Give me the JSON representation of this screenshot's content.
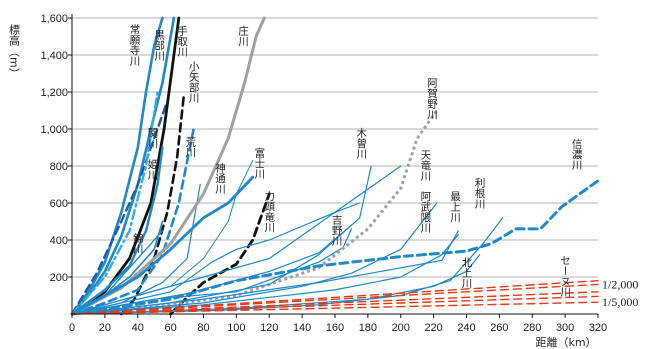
{
  "chart_data": {
    "type": "line",
    "title": "",
    "xlabel": "距離（km）",
    "ylabel": "標高（m）",
    "xlim": [
      0,
      320
    ],
    "ylim": [
      0,
      1600
    ],
    "x_ticks": [
      0,
      20,
      40,
      60,
      80,
      100,
      120,
      140,
      160,
      180,
      200,
      220,
      240,
      260,
      280,
      300,
      320
    ],
    "y_ticks": [
      {
        "value": 200,
        "label": "200"
      },
      {
        "value": 400,
        "label": "400"
      },
      {
        "value": 600,
        "label": "600"
      },
      {
        "value": 800,
        "label": "800"
      },
      {
        "value": 1000,
        "label": "1,000"
      },
      {
        "value": 1200,
        "label": "1,200"
      },
      {
        "value": 1400,
        "label": "1,400"
      },
      {
        "value": 1600,
        "label": "1,600"
      }
    ],
    "grid": {
      "horizontal": true,
      "vertical": false
    },
    "series": [
      {
        "name": "常願寺川",
        "color": "#1e88c8",
        "style": "solid",
        "width": 2.6,
        "points": [
          [
            0,
            0
          ],
          [
            10,
            120
          ],
          [
            20,
            280
          ],
          [
            30,
            550
          ],
          [
            40,
            900
          ],
          [
            45,
            1200
          ],
          [
            50,
            1450
          ],
          [
            55,
            1600
          ]
        ]
      },
      {
        "name": "黒部川",
        "color": "#1e88c8",
        "style": "solid",
        "width": 2.6,
        "points": [
          [
            0,
            0
          ],
          [
            10,
            100
          ],
          [
            20,
            230
          ],
          [
            30,
            420
          ],
          [
            40,
            700
          ],
          [
            48,
            1000
          ],
          [
            55,
            1250
          ],
          [
            62,
            1600
          ]
        ]
      },
      {
        "name": "",
        "color": "#1a5aa6",
        "style": "dashed",
        "width": 2.4,
        "points": [
          [
            0,
            0
          ],
          [
            15,
            220
          ],
          [
            30,
            500
          ],
          [
            40,
            700
          ],
          [
            50,
            950
          ],
          [
            58,
            1150
          ]
        ]
      },
      {
        "name": "",
        "color": "#33aee0",
        "style": "dashdot",
        "width": 2.4,
        "points": [
          [
            0,
            0
          ],
          [
            20,
            200
          ],
          [
            35,
            450
          ],
          [
            45,
            800
          ],
          [
            52,
            1200
          ]
        ]
      },
      {
        "name": "手取川",
        "color": "#111111",
        "style": "solid",
        "width": 2.8,
        "points": [
          [
            0,
            0
          ],
          [
            20,
            120
          ],
          [
            35,
            300
          ],
          [
            48,
            600
          ],
          [
            56,
            1000
          ],
          [
            62,
            1400
          ],
          [
            65,
            1600
          ]
        ]
      },
      {
        "name": "",
        "color": "#111111",
        "style": "dashed",
        "width": 2.6,
        "points": [
          [
            30,
            0
          ],
          [
            38,
            80
          ],
          [
            50,
            300
          ],
          [
            58,
            550
          ],
          [
            64,
            850
          ],
          [
            68,
            1180
          ]
        ]
      },
      {
        "name": "姫川",
        "color": "#1e88c8",
        "style": "solid",
        "width": 2.4,
        "points": [
          [
            0,
            0
          ],
          [
            20,
            130
          ],
          [
            35,
            260
          ],
          [
            45,
            450
          ],
          [
            52,
            700
          ],
          [
            55,
            900
          ]
        ]
      },
      {
        "name": "関川",
        "color": "#1e88c8",
        "style": "solid",
        "width": 1.6,
        "points": [
          [
            0,
            0
          ],
          [
            20,
            100
          ],
          [
            35,
            200
          ],
          [
            50,
            350
          ],
          [
            55,
            500
          ]
        ]
      },
      {
        "name": "荒川",
        "color": "#1e88c8",
        "style": "dashed",
        "width": 2.6,
        "points": [
          [
            0,
            0
          ],
          [
            20,
            60
          ],
          [
            40,
            130
          ],
          [
            55,
            320
          ],
          [
            65,
            600
          ],
          [
            74,
            1000
          ]
        ]
      },
      {
        "name": "小矢部川",
        "color": "#1e88c8",
        "style": "solid",
        "width": 1.2,
        "points": [
          [
            0,
            0
          ],
          [
            30,
            60
          ],
          [
            55,
            170
          ],
          [
            70,
            300
          ],
          [
            78,
            700
          ]
        ]
      },
      {
        "name": "錦川",
        "color": "#1e88c8",
        "style": "solid",
        "width": 1.4,
        "points": [
          [
            0,
            0
          ],
          [
            20,
            100
          ],
          [
            35,
            250
          ],
          [
            45,
            350
          ],
          [
            55,
            450
          ]
        ]
      },
      {
        "name": "庄川",
        "color": "#a0a0a0",
        "style": "solid",
        "width": 3.0,
        "points": [
          [
            0,
            0
          ],
          [
            30,
            140
          ],
          [
            60,
            380
          ],
          [
            80,
            650
          ],
          [
            95,
            950
          ],
          [
            105,
            1250
          ],
          [
            112,
            1500
          ],
          [
            117,
            1600
          ]
        ]
      },
      {
        "name": "神通川",
        "color": "#1e88c8",
        "style": "solid",
        "width": 2.8,
        "points": [
          [
            0,
            0
          ],
          [
            40,
            200
          ],
          [
            60,
            350
          ],
          [
            80,
            520
          ],
          [
            95,
            600
          ],
          [
            110,
            740
          ]
        ]
      },
      {
        "name": "",
        "color": "#1e88c8",
        "style": "solid",
        "width": 1.0,
        "points": [
          [
            0,
            0
          ],
          [
            60,
            150
          ],
          [
            80,
            300
          ],
          [
            95,
            500
          ],
          [
            100,
            650
          ],
          [
            110,
            830
          ]
        ]
      },
      {
        "name": "",
        "color": "#111111",
        "style": "dashed",
        "width": 2.8,
        "points": [
          [
            60,
            0
          ],
          [
            70,
            90
          ],
          [
            80,
            170
          ],
          [
            90,
            220
          ],
          [
            100,
            270
          ],
          [
            110,
            400
          ],
          [
            120,
            650
          ]
        ]
      },
      {
        "name": "富士川",
        "color": "#1e88c8",
        "style": "solid",
        "width": 1.2,
        "points": [
          [
            0,
            0
          ],
          [
            60,
            120
          ],
          [
            85,
            280
          ],
          [
            100,
            350
          ],
          [
            120,
            400
          ],
          [
            160,
            550
          ],
          [
            175,
            600
          ]
        ]
      },
      {
        "name": "天竜川",
        "color": "#1e88c8",
        "style": "solid",
        "width": 1.2,
        "points": [
          [
            0,
            0
          ],
          [
            40,
            100
          ],
          [
            80,
            200
          ],
          [
            120,
            300
          ],
          [
            160,
            550
          ],
          [
            200,
            800
          ]
        ]
      },
      {
        "name": "吉野川",
        "color": "#1e88c8",
        "style": "solid",
        "width": 1.2,
        "points": [
          [
            0,
            0
          ],
          [
            50,
            80
          ],
          [
            100,
            120
          ],
          [
            125,
            200
          ],
          [
            150,
            280
          ],
          [
            165,
            360
          ],
          [
            170,
            460
          ]
        ]
      },
      {
        "name": "",
        "color": "#1e88c8",
        "style": "solid",
        "width": 1.2,
        "points": [
          [
            0,
            0
          ],
          [
            70,
            110
          ],
          [
            120,
            230
          ],
          [
            150,
            330
          ],
          [
            170,
            480
          ]
        ]
      },
      {
        "name": "阿賀野川",
        "color": "#a0a0a0",
        "style": "dotted",
        "width": 3.0,
        "points": [
          [
            0,
            0
          ],
          [
            50,
            40
          ],
          [
            100,
            100
          ],
          [
            150,
            250
          ],
          [
            180,
            460
          ],
          [
            200,
            680
          ],
          [
            210,
            950
          ],
          [
            222,
            1100
          ]
        ]
      },
      {
        "name": "木曽川",
        "color": "#1e88c8",
        "style": "solid",
        "width": 1.2,
        "points": [
          [
            0,
            0
          ],
          [
            60,
            60
          ],
          [
            120,
            160
          ],
          [
            150,
            320
          ],
          [
            175,
            520
          ],
          [
            182,
            800
          ]
        ]
      },
      {
        "name": "阿武隈川",
        "color": "#1e88c8",
        "style": "solid",
        "width": 1.2,
        "points": [
          [
            0,
            0
          ],
          [
            80,
            60
          ],
          [
            140,
            150
          ],
          [
            170,
            220
          ],
          [
            200,
            350
          ],
          [
            215,
            520
          ],
          [
            222,
            600
          ]
        ]
      },
      {
        "name": "最上川",
        "color": "#1e88c8",
        "style": "solid",
        "width": 1.2,
        "points": [
          [
            0,
            0
          ],
          [
            80,
            80
          ],
          [
            150,
            170
          ],
          [
            200,
            250
          ],
          [
            225,
            290
          ],
          [
            235,
            450
          ]
        ]
      },
      {
        "name": "",
        "color": "#1e88c8",
        "style": "solid",
        "width": 1.2,
        "points": [
          [
            0,
            0
          ],
          [
            80,
            50
          ],
          [
            160,
            130
          ],
          [
            200,
            200
          ],
          [
            225,
            320
          ],
          [
            235,
            430
          ]
        ]
      },
      {
        "name": "利根川",
        "color": "#1e88c8",
        "style": "solid",
        "width": 1.2,
        "points": [
          [
            0,
            0
          ],
          [
            90,
            20
          ],
          [
            150,
            50
          ],
          [
            200,
            100
          ],
          [
            230,
            180
          ],
          [
            250,
            380
          ],
          [
            262,
            520
          ]
        ]
      },
      {
        "name": "北上川",
        "color": "#1e88c8",
        "style": "solid",
        "width": 1.2,
        "points": [
          [
            0,
            0
          ],
          [
            100,
            30
          ],
          [
            180,
            80
          ],
          [
            220,
            150
          ],
          [
            240,
            230
          ],
          [
            248,
            320
          ]
        ]
      },
      {
        "name": "信濃川",
        "color": "#1e88c8",
        "style": "dashed",
        "width": 3.0,
        "points": [
          [
            0,
            0
          ],
          [
            60,
            80
          ],
          [
            100,
            180
          ],
          [
            150,
            260
          ],
          [
            200,
            310
          ],
          [
            240,
            340
          ],
          [
            255,
            380
          ],
          [
            270,
            460
          ],
          [
            285,
            460
          ],
          [
            298,
            580
          ],
          [
            312,
            670
          ],
          [
            320,
            720
          ]
        ]
      },
      {
        "name": "セーヌ川",
        "color": "#e03a1a",
        "style": "dashed",
        "width": 1.4,
        "points": [
          [
            0,
            0
          ],
          [
            320,
            95
          ]
        ]
      },
      {
        "name": "",
        "color": "#e03a1a",
        "style": "dashed",
        "width": 1.4,
        "points": [
          [
            0,
            0
          ],
          [
            320,
            160
          ]
        ]
      },
      {
        "name": "",
        "color": "#e03a1a",
        "style": "dashed",
        "width": 1.4,
        "points": [
          [
            0,
            0
          ],
          [
            320,
            64
          ]
        ]
      },
      {
        "name": "",
        "color": "#e03a1a",
        "style": "dashed",
        "width": 1.4,
        "points": [
          [
            0,
            0
          ],
          [
            320,
            120
          ]
        ]
      },
      {
        "name": "",
        "color": "#e03a1a",
        "style": "dashed",
        "width": 1.4,
        "points": [
          [
            0,
            0
          ],
          [
            320,
            180
          ]
        ]
      }
    ],
    "annotations": [
      {
        "text": "1/2,000",
        "value": 160,
        "orient": "h"
      },
      {
        "text": "1/5,000",
        "value": 64,
        "orient": "h"
      }
    ],
    "river_labels": [
      {
        "text": "常願寺川",
        "x": 38,
        "y": 1570
      },
      {
        "text": "黒部川",
        "x": 53,
        "y": 1540
      },
      {
        "text": "手取川",
        "x": 67,
        "y": 1560
      },
      {
        "text": "庄川",
        "x": 104,
        "y": 1560
      },
      {
        "text": "小矢部川",
        "x": 74,
        "y": 1370
      },
      {
        "text": "関川",
        "x": 49,
        "y": 1010
      },
      {
        "text": "荒川",
        "x": 72,
        "y": 960
      },
      {
        "text": "姫川",
        "x": 49,
        "y": 840
      },
      {
        "text": "神通川",
        "x": 90,
        "y": 820
      },
      {
        "text": "富士川",
        "x": 114,
        "y": 900
      },
      {
        "text": "木曽川",
        "x": 176,
        "y": 1010
      },
      {
        "text": "阿賀野川",
        "x": 219,
        "y": 1280
      },
      {
        "text": "天竜川",
        "x": 215,
        "y": 890
      },
      {
        "text": "信濃川",
        "x": 307,
        "y": 950
      },
      {
        "text": "利根川",
        "x": 248,
        "y": 740
      },
      {
        "text": "阿武隈川",
        "x": 215,
        "y": 665
      },
      {
        "text": "最上川",
        "x": 233,
        "y": 665
      },
      {
        "text": "吉野川",
        "x": 161,
        "y": 540
      },
      {
        "text": "力頭竜川",
        "x": 120,
        "y": 670
      },
      {
        "text": "錦川",
        "x": 40,
        "y": 440
      },
      {
        "text": "北上川",
        "x": 240,
        "y": 310
      },
      {
        "text": "セーヌ川",
        "x": 300,
        "y": 320
      }
    ]
  }
}
